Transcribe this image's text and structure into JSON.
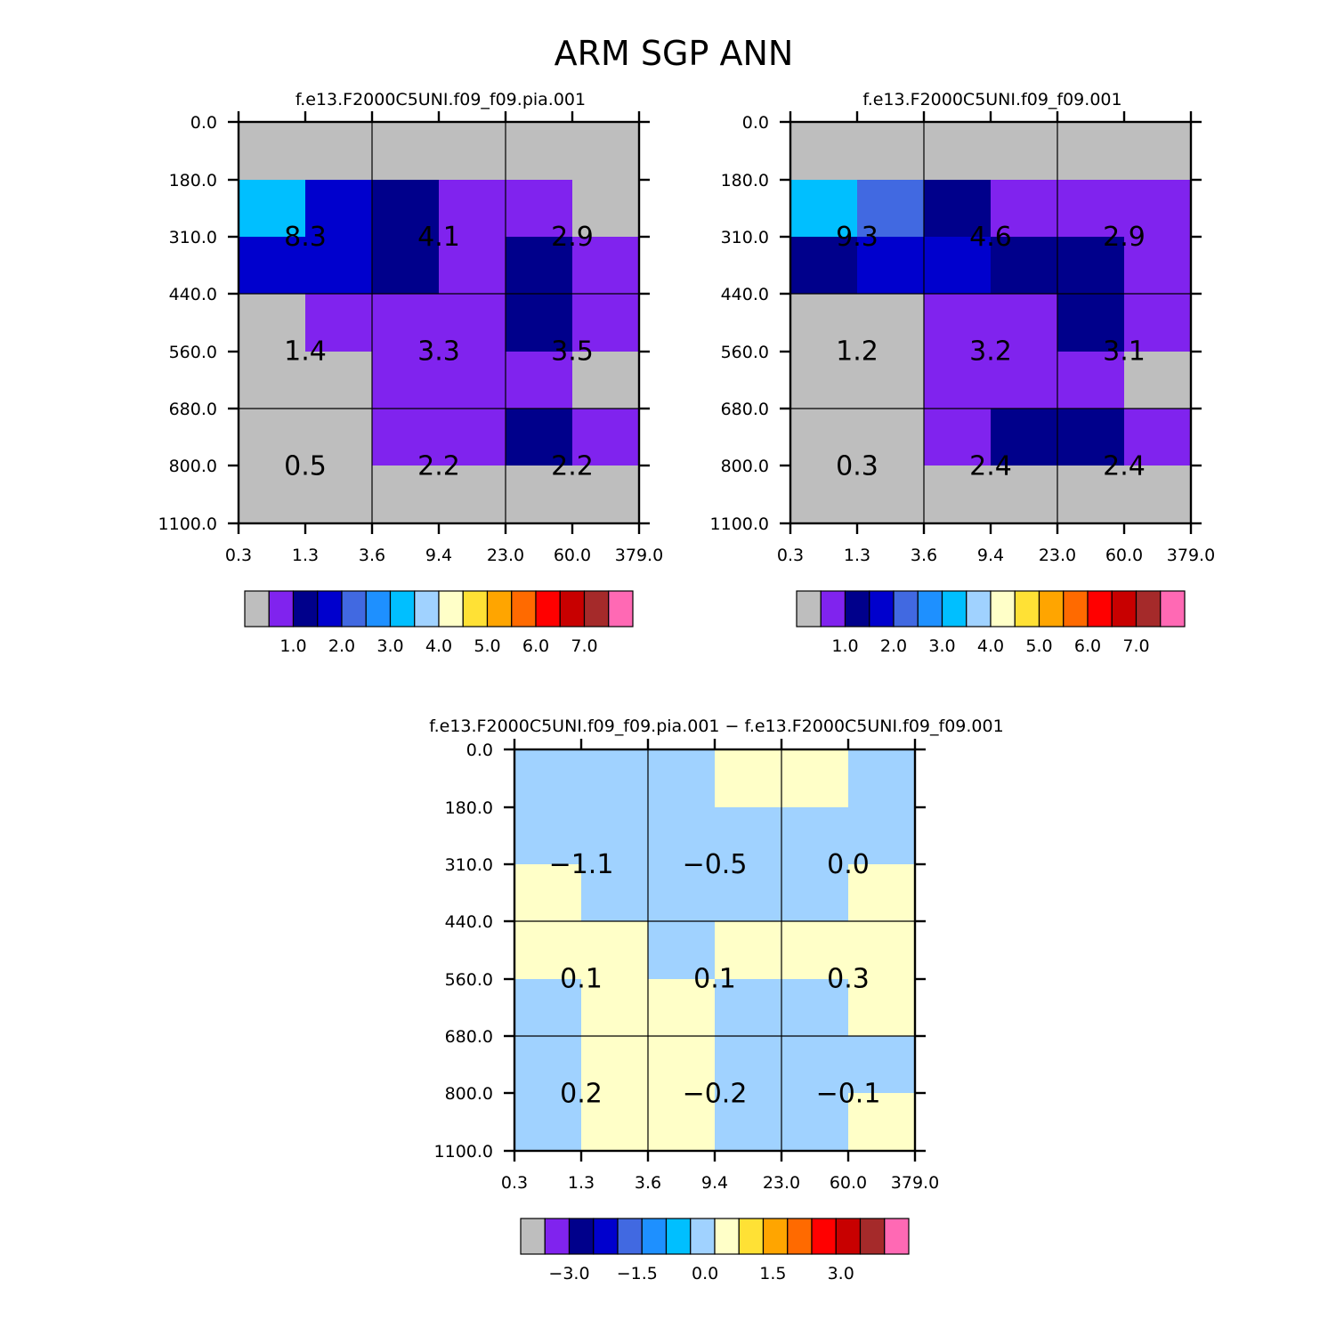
{
  "title": "ARM SGP ANN",
  "palette": [
    "#bebebe",
    "#8023ee",
    "#00008b",
    "#0000cd",
    "#4169e1",
    "#1e90ff",
    "#00bfff",
    "#a0d2ff",
    "#ffffc8",
    "#ffe135",
    "#ffa500",
    "#ff6a00",
    "#ff0000",
    "#c80000",
    "#a52a2a",
    "#ff69b4"
  ],
  "chart_data": [
    {
      "type": "heatmap",
      "title": "f.e13.F2000C5UNI.f09_f09.pia.001",
      "x_tick_labels": [
        "0.3",
        "1.3",
        "3.6",
        "9.4",
        "23.0",
        "60.0",
        "379.0"
      ],
      "y_tick_labels": [
        "0.0",
        "180.0",
        "310.0",
        "440.0",
        "560.0",
        "680.0",
        "800.0",
        "1100.0"
      ],
      "grid_color_index": [
        [
          0,
          0,
          0,
          0,
          0,
          0
        ],
        [
          6,
          3,
          2,
          1,
          1,
          0
        ],
        [
          3,
          3,
          2,
          1,
          2,
          1
        ],
        [
          0,
          1,
          1,
          1,
          2,
          1
        ],
        [
          0,
          0,
          1,
          1,
          1,
          0
        ],
        [
          0,
          0,
          1,
          1,
          2,
          1
        ],
        [
          0,
          0,
          0,
          0,
          0,
          0
        ]
      ],
      "cell_labels": [
        [
          "8.3",
          "4.1",
          "2.9"
        ],
        [
          "1.4",
          "3.3",
          "3.5"
        ],
        [
          "0.5",
          "2.2",
          "2.2"
        ]
      ],
      "colorbar": {
        "n_boxes": 16,
        "labels": [
          "1.0",
          "2.0",
          "3.0",
          "4.0",
          "5.0",
          "6.0",
          "7.0"
        ]
      }
    },
    {
      "type": "heatmap",
      "title": "f.e13.F2000C5UNI.f09_f09.001",
      "x_tick_labels": [
        "0.3",
        "1.3",
        "3.6",
        "9.4",
        "23.0",
        "60.0",
        "379.0"
      ],
      "y_tick_labels": [
        "0.0",
        "180.0",
        "310.0",
        "440.0",
        "560.0",
        "680.0",
        "800.0",
        "1100.0"
      ],
      "grid_color_index": [
        [
          0,
          0,
          0,
          0,
          0,
          0
        ],
        [
          6,
          4,
          2,
          1,
          1,
          1
        ],
        [
          2,
          3,
          3,
          2,
          2,
          1
        ],
        [
          0,
          0,
          1,
          1,
          2,
          1
        ],
        [
          0,
          0,
          1,
          1,
          1,
          0
        ],
        [
          0,
          0,
          1,
          2,
          2,
          1
        ],
        [
          0,
          0,
          0,
          0,
          0,
          0
        ]
      ],
      "cell_labels": [
        [
          "9.3",
          "4.6",
          "2.9"
        ],
        [
          "1.2",
          "3.2",
          "3.1"
        ],
        [
          "0.3",
          "2.4",
          "2.4"
        ]
      ],
      "colorbar": {
        "n_boxes": 16,
        "labels": [
          "1.0",
          "2.0",
          "3.0",
          "4.0",
          "5.0",
          "6.0",
          "7.0"
        ]
      }
    },
    {
      "type": "heatmap",
      "title": "f.e13.F2000C5UNI.f09_f09.pia.001 − f.e13.F2000C5UNI.f09_f09.001",
      "x_tick_labels": [
        "0.3",
        "1.3",
        "3.6",
        "9.4",
        "23.0",
        "60.0",
        "379.0"
      ],
      "y_tick_labels": [
        "0.0",
        "180.0",
        "310.0",
        "440.0",
        "560.0",
        "680.0",
        "800.0",
        "1100.0"
      ],
      "grid_color_index": [
        [
          7,
          7,
          7,
          8,
          8,
          7
        ],
        [
          7,
          7,
          7,
          7,
          7,
          7
        ],
        [
          8,
          7,
          7,
          7,
          7,
          8
        ],
        [
          8,
          8,
          7,
          8,
          8,
          8
        ],
        [
          7,
          8,
          8,
          7,
          7,
          8
        ],
        [
          7,
          8,
          8,
          7,
          7,
          7
        ],
        [
          7,
          8,
          8,
          7,
          7,
          8
        ]
      ],
      "cell_labels": [
        [
          "−1.1",
          "−0.5",
          "0.0"
        ],
        [
          "0.1",
          "0.1",
          "0.3"
        ],
        [
          "0.2",
          "−0.2",
          "−0.1"
        ]
      ],
      "colorbar": {
        "n_boxes": 16,
        "labels": [
          "−3.0",
          "−1.5",
          "0.0",
          "1.5",
          "3.0"
        ]
      }
    }
  ]
}
